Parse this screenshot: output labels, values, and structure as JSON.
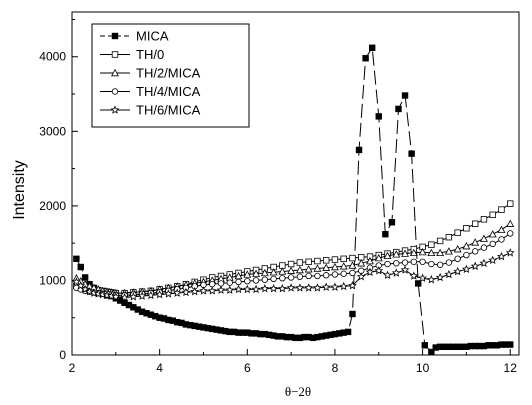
{
  "chart_data": {
    "type": "line",
    "xlabel": "θ−2θ",
    "ylabel": "Intensity",
    "xlim": [
      2,
      12.2
    ],
    "ylim": [
      0,
      4600
    ],
    "xticks": [
      2,
      4,
      6,
      8,
      10,
      12
    ],
    "yticks": [
      0,
      1000,
      2000,
      3000,
      4000
    ],
    "grid": false,
    "legend_position": "top-left",
    "series": [
      {
        "name": "MICA",
        "marker": "filled-square",
        "line": "dashed",
        "color": "#000000",
        "x": [
          2.1,
          2.2,
          2.3,
          2.4,
          2.5,
          2.6,
          2.7,
          2.8,
          2.9,
          3.0,
          3.1,
          3.2,
          3.3,
          3.4,
          3.5,
          3.6,
          3.7,
          3.8,
          3.9,
          4.0,
          4.1,
          4.2,
          4.3,
          4.4,
          4.5,
          4.6,
          4.7,
          4.8,
          4.9,
          5.0,
          5.1,
          5.2,
          5.3,
          5.4,
          5.5,
          5.6,
          5.7,
          5.8,
          5.9,
          6.0,
          6.1,
          6.2,
          6.3,
          6.4,
          6.5,
          6.6,
          6.7,
          6.8,
          6.9,
          7.0,
          7.1,
          7.2,
          7.3,
          7.4,
          7.5,
          7.6,
          7.7,
          7.8,
          7.9,
          8.0,
          8.1,
          8.2,
          8.3,
          8.4,
          8.55,
          8.7,
          8.85,
          9.0,
          9.15,
          9.3,
          9.45,
          9.6,
          9.75,
          9.9,
          10.05,
          10.2,
          10.3,
          10.4,
          10.5,
          10.6,
          10.7,
          10.8,
          10.9,
          11.0,
          11.1,
          11.2,
          11.3,
          11.4,
          11.5,
          11.6,
          11.7,
          11.8,
          11.9,
          12.0
        ],
        "values": [
          1290,
          1180,
          1040,
          950,
          900,
          860,
          830,
          800,
          790,
          760,
          730,
          700,
          670,
          640,
          610,
          580,
          560,
          540,
          520,
          500,
          490,
          470,
          460,
          440,
          430,
          410,
          400,
          390,
          380,
          370,
          360,
          350,
          340,
          330,
          320,
          310,
          310,
          300,
          300,
          300,
          290,
          290,
          280,
          280,
          270,
          260,
          250,
          250,
          240,
          240,
          230,
          230,
          240,
          240,
          230,
          240,
          250,
          260,
          270,
          280,
          290,
          300,
          310,
          550,
          2750,
          3980,
          4120,
          3200,
          1620,
          1780,
          3300,
          3480,
          2700,
          960,
          130,
          40,
          100,
          110,
          110,
          110,
          110,
          110,
          110,
          110,
          120,
          120,
          120,
          120,
          130,
          130,
          130,
          140,
          140,
          140
        ]
      },
      {
        "name": "TH/0",
        "marker": "open-square",
        "line": "solid",
        "color": "#000000",
        "x": [
          2.1,
          2.2,
          2.3,
          2.4,
          2.5,
          2.6,
          2.7,
          2.8,
          2.9,
          3.0,
          3.2,
          3.4,
          3.6,
          3.8,
          4.0,
          4.2,
          4.4,
          4.6,
          4.8,
          5.0,
          5.2,
          5.4,
          5.6,
          5.8,
          6.0,
          6.2,
          6.4,
          6.6,
          6.8,
          7.0,
          7.2,
          7.4,
          7.6,
          7.8,
          8.0,
          8.2,
          8.4,
          8.6,
          8.8,
          9.0,
          9.2,
          9.4,
          9.6,
          9.8,
          10.0,
          10.2,
          10.4,
          10.6,
          10.8,
          11.0,
          11.2,
          11.4,
          11.6,
          11.8,
          12.0
        ],
        "values": [
          930,
          920,
          910,
          900,
          880,
          870,
          860,
          850,
          840,
          830,
          830,
          840,
          850,
          860,
          880,
          900,
          920,
          950,
          980,
          1010,
          1040,
          1060,
          1080,
          1100,
          1120,
          1140,
          1160,
          1180,
          1200,
          1220,
          1240,
          1250,
          1260,
          1270,
          1280,
          1290,
          1300,
          1310,
          1320,
          1340,
          1360,
          1380,
          1400,
          1420,
          1450,
          1480,
          1530,
          1580,
          1640,
          1700,
          1760,
          1820,
          1880,
          1950,
          2030
        ]
      },
      {
        "name": "TH/2/MICA",
        "marker": "open-triangle",
        "line": "solid",
        "color": "#000000",
        "x": [
          2.1,
          2.2,
          2.3,
          2.4,
          2.5,
          2.6,
          2.7,
          2.8,
          2.9,
          3.0,
          3.2,
          3.4,
          3.6,
          3.8,
          4.0,
          4.2,
          4.4,
          4.6,
          4.8,
          5.0,
          5.2,
          5.4,
          5.6,
          5.8,
          6.0,
          6.2,
          6.4,
          6.6,
          6.8,
          7.0,
          7.2,
          7.4,
          7.6,
          7.8,
          8.0,
          8.2,
          8.4,
          8.6,
          8.8,
          9.0,
          9.2,
          9.4,
          9.6,
          9.8,
          10.0,
          10.2,
          10.4,
          10.6,
          10.8,
          11.0,
          11.2,
          11.4,
          11.6,
          11.8,
          12.0
        ],
        "values": [
          1030,
          990,
          950,
          920,
          900,
          880,
          860,
          850,
          840,
          830,
          830,
          840,
          850,
          860,
          880,
          900,
          920,
          940,
          960,
          980,
          1000,
          1020,
          1040,
          1060,
          1080,
          1090,
          1100,
          1110,
          1120,
          1130,
          1140,
          1150,
          1160,
          1170,
          1180,
          1190,
          1200,
          1230,
          1260,
          1300,
          1330,
          1350,
          1360,
          1370,
          1380,
          1370,
          1370,
          1390,
          1420,
          1460,
          1510,
          1560,
          1620,
          1680,
          1760
        ]
      },
      {
        "name": "TH/4/MICA",
        "marker": "open-circle",
        "line": "solid",
        "color": "#000000",
        "x": [
          2.1,
          2.2,
          2.3,
          2.4,
          2.5,
          2.6,
          2.7,
          2.8,
          2.9,
          3.0,
          3.2,
          3.4,
          3.6,
          3.8,
          4.0,
          4.2,
          4.4,
          4.6,
          4.8,
          5.0,
          5.2,
          5.4,
          5.6,
          5.8,
          6.0,
          6.2,
          6.4,
          6.6,
          6.8,
          7.0,
          7.2,
          7.4,
          7.6,
          7.8,
          8.0,
          8.2,
          8.4,
          8.6,
          8.8,
          9.0,
          9.2,
          9.4,
          9.6,
          9.8,
          10.0,
          10.2,
          10.4,
          10.6,
          10.8,
          11.0,
          11.2,
          11.4,
          11.6,
          11.8,
          12.0
        ],
        "values": [
          900,
          880,
          860,
          850,
          840,
          830,
          820,
          820,
          810,
          800,
          800,
          810,
          820,
          830,
          840,
          860,
          880,
          900,
          920,
          940,
          950,
          960,
          970,
          980,
          990,
          1000,
          1010,
          1020,
          1030,
          1040,
          1050,
          1060,
          1060,
          1070,
          1080,
          1090,
          1100,
          1130,
          1170,
          1200,
          1220,
          1230,
          1240,
          1250,
          1250,
          1220,
          1210,
          1240,
          1290,
          1340,
          1390,
          1440,
          1490,
          1550,
          1630
        ]
      },
      {
        "name": "TH/6/MICA",
        "marker": "open-star",
        "line": "solid",
        "color": "#000000",
        "x": [
          2.1,
          2.2,
          2.3,
          2.4,
          2.5,
          2.6,
          2.7,
          2.8,
          2.9,
          3.0,
          3.2,
          3.4,
          3.6,
          3.8,
          4.0,
          4.2,
          4.4,
          4.6,
          4.8,
          5.0,
          5.2,
          5.4,
          5.6,
          5.8,
          6.0,
          6.2,
          6.4,
          6.6,
          6.8,
          7.0,
          7.2,
          7.4,
          7.6,
          7.8,
          8.0,
          8.2,
          8.4,
          8.6,
          8.8,
          9.0,
          9.2,
          9.4,
          9.6,
          9.8,
          10.0,
          10.2,
          10.4,
          10.6,
          10.8,
          11.0,
          11.2,
          11.4,
          11.6,
          11.8,
          12.0
        ],
        "values": [
          980,
          930,
          880,
          850,
          830,
          820,
          810,
          800,
          790,
          780,
          770,
          780,
          790,
          800,
          810,
          820,
          830,
          840,
          850,
          860,
          860,
          870,
          870,
          880,
          880,
          880,
          890,
          890,
          890,
          900,
          900,
          900,
          900,
          910,
          910,
          920,
          930,
          1050,
          1110,
          1130,
          1070,
          1100,
          1140,
          1060,
          1030,
          1010,
          1040,
          1080,
          1120,
          1150,
          1190,
          1230,
          1270,
          1320,
          1370
        ]
      }
    ]
  }
}
